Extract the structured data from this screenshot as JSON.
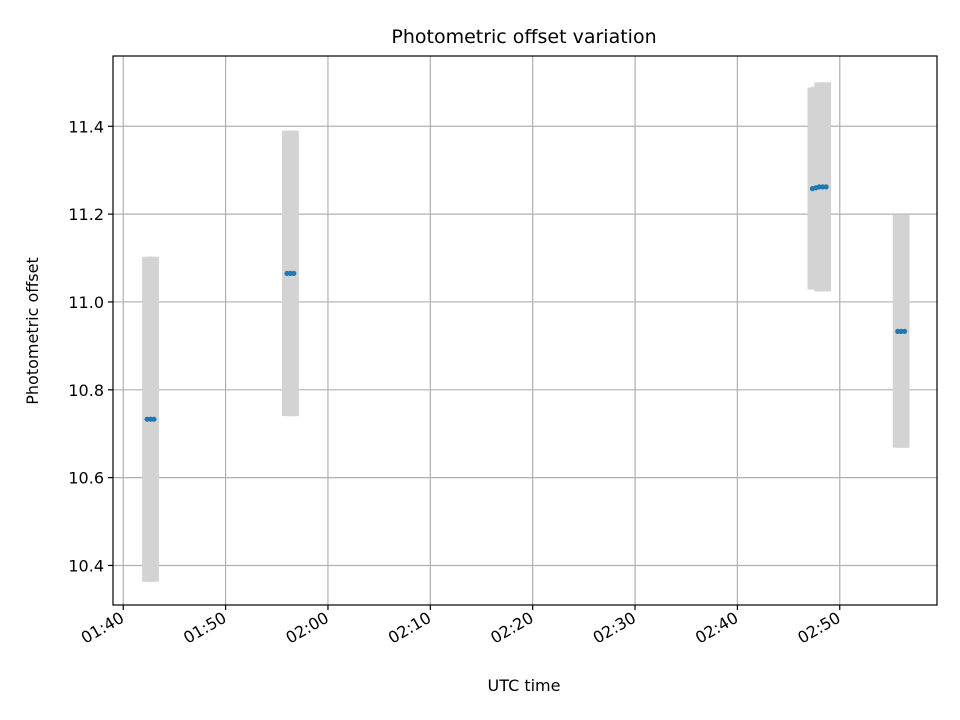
{
  "chart_data": {
    "type": "scatter",
    "title": "Photometric offset variation",
    "xlabel": "UTC time",
    "ylabel": "Photometric offset",
    "x_is_time": true,
    "xlim": [
      "01:39:00",
      "02:59:30"
    ],
    "ylim": [
      10.31,
      11.56
    ],
    "x_ticks": [
      "01:40",
      "01:50",
      "02:00",
      "02:10",
      "02:20",
      "02:30",
      "02:40",
      "02:50"
    ],
    "y_ticks": [
      10.4,
      10.6,
      10.8,
      11.0,
      11.2,
      11.4
    ],
    "y_tick_labels": [
      "10.4",
      "10.6",
      "10.8",
      "11.0",
      "11.2",
      "11.4"
    ],
    "grid": true,
    "colors": {
      "points": "#1f77b4",
      "error_bars": "#d3d3d3",
      "grid": "#b0b0b0"
    },
    "points": [
      {
        "time": "01:42:20",
        "y": 10.733,
        "yerr": 0.37
      },
      {
        "time": "01:42:40",
        "y": 10.733,
        "yerr": 0.37
      },
      {
        "time": "01:43:00",
        "y": 10.733,
        "yerr": 0.37
      },
      {
        "time": "01:56:00",
        "y": 11.065,
        "yerr": 0.325
      },
      {
        "time": "01:56:20",
        "y": 11.065,
        "yerr": 0.325
      },
      {
        "time": "01:56:40",
        "y": 11.065,
        "yerr": 0.325
      },
      {
        "time": "02:47:20",
        "y": 11.258,
        "yerr": 0.23
      },
      {
        "time": "02:47:40",
        "y": 11.26,
        "yerr": 0.23
      },
      {
        "time": "02:48:00",
        "y": 11.262,
        "yerr": 0.238
      },
      {
        "time": "02:48:20",
        "y": 11.262,
        "yerr": 0.238
      },
      {
        "time": "02:48:40",
        "y": 11.262,
        "yerr": 0.238
      },
      {
        "time": "02:55:40",
        "y": 10.933,
        "yerr": 0.265
      },
      {
        "time": "02:56:00",
        "y": 10.933,
        "yerr": 0.265
      },
      {
        "time": "02:56:20",
        "y": 10.933,
        "yerr": 0.265
      }
    ]
  }
}
